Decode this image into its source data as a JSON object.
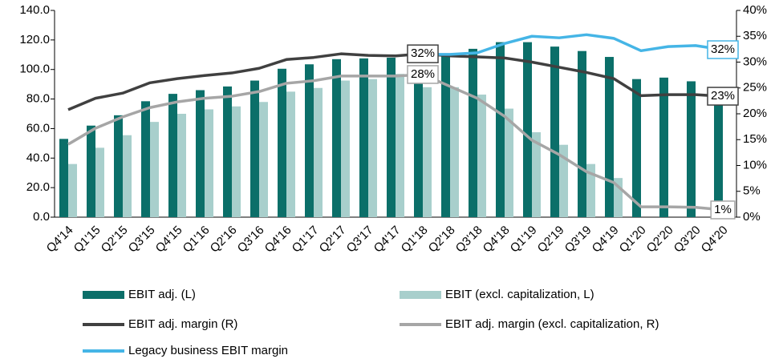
{
  "chart_data": {
    "type": "bar",
    "categories": [
      "Q4'14",
      "Q1'15",
      "Q2'15",
      "Q3'15",
      "Q4'15",
      "Q1'16",
      "Q2'16",
      "Q3'16",
      "Q4'16",
      "Q1'17",
      "Q2'17",
      "Q3'17",
      "Q4'17",
      "Q1'18",
      "Q2'18",
      "Q3'18",
      "Q4'18",
      "Q1'19",
      "Q2'19",
      "Q3'19",
      "Q4'19",
      "Q1'20",
      "Q2'20",
      "Q3'20",
      "Q4'20"
    ],
    "series": [
      {
        "name": "EBIT adj. (L)",
        "type": "bar",
        "color": "#0b6f69",
        "values": [
          53,
          62,
          69,
          78.5,
          83.5,
          86,
          88.5,
          92.5,
          100.5,
          103.5,
          107,
          107.5,
          108,
          93,
          110,
          114,
          118.5,
          118.5,
          115.5,
          112.5,
          108.5,
          93.5,
          94.5,
          92,
          79
        ]
      },
      {
        "name": "EBIT (excl. capitalization, L)",
        "type": "bar",
        "color": "#a8cfcc",
        "values": [
          36,
          47,
          55.5,
          64.5,
          70,
          73,
          75,
          78,
          85,
          87.5,
          92.5,
          93.5,
          97,
          88,
          88,
          83,
          73.5,
          57.5,
          49,
          36,
          26.5,
          null,
          null,
          null,
          null
        ]
      },
      {
        "name": "EBIT adj. margin (R)",
        "type": "line",
        "axis": "y2",
        "color": "#404040",
        "values": [
          20.8,
          23,
          24,
          26,
          26.8,
          27.4,
          27.9,
          28.8,
          30.5,
          30.9,
          31.6,
          31.3,
          31.2,
          31.6,
          31.2,
          31,
          30.8,
          30,
          29,
          28,
          26.8,
          23.5,
          23.7,
          23.7,
          23.4
        ],
        "value_labels": [
          null,
          null,
          null,
          null,
          null,
          null,
          null,
          null,
          null,
          null,
          null,
          null,
          null,
          "32%",
          null,
          null,
          null,
          null,
          null,
          null,
          null,
          null,
          null,
          null,
          "23%"
        ]
      },
      {
        "name": "EBIT adj. margin (excl. capitalization, R)",
        "type": "line",
        "axis": "y2",
        "color": "#a6a6a6",
        "values": [
          14.1,
          17.2,
          19.4,
          21.2,
          22.3,
          23,
          23.4,
          24.3,
          25.9,
          26.4,
          27.3,
          27.3,
          27.3,
          27.6,
          25.3,
          23,
          19.5,
          14.9,
          12.1,
          8.8,
          6.7,
          2,
          2,
          1.9,
          1.4
        ],
        "value_labels": [
          null,
          null,
          null,
          null,
          null,
          null,
          null,
          null,
          null,
          null,
          null,
          null,
          null,
          "28%",
          null,
          null,
          null,
          null,
          null,
          null,
          null,
          null,
          null,
          null,
          "1%"
        ]
      },
      {
        "name": "Legacy business EBIT margin",
        "type": "line",
        "axis": "y2",
        "color": "#45b5e6",
        "values": [
          null,
          null,
          null,
          null,
          null,
          null,
          null,
          null,
          null,
          null,
          null,
          null,
          null,
          31.5,
          31.5,
          31.8,
          33.6,
          35,
          34.7,
          35.3,
          34.6,
          32.2,
          33,
          33.2,
          32.4
        ],
        "value_labels": [
          null,
          null,
          null,
          null,
          null,
          null,
          null,
          null,
          null,
          null,
          null,
          null,
          null,
          null,
          null,
          null,
          null,
          null,
          null,
          null,
          null,
          null,
          null,
          null,
          "32%"
        ]
      }
    ],
    "ylim": [
      0,
      140
    ],
    "yticks": [
      {
        "value": 0,
        "label": "0.0"
      },
      {
        "value": 20,
        "label": "20.0"
      },
      {
        "value": 40,
        "label": "40.0"
      },
      {
        "value": 60,
        "label": "60.0"
      },
      {
        "value": 80,
        "label": "80.0"
      },
      {
        "value": 100,
        "label": "100.0"
      },
      {
        "value": 120,
        "label": "120.0"
      },
      {
        "value": 140,
        "label": "140.0"
      }
    ],
    "y2lim": [
      0,
      40
    ],
    "y2ticks": [
      {
        "value": 0,
        "label": "0%"
      },
      {
        "value": 5,
        "label": "5%"
      },
      {
        "value": 10,
        "label": "10%"
      },
      {
        "value": 15,
        "label": "15%"
      },
      {
        "value": 20,
        "label": "20%"
      },
      {
        "value": 25,
        "label": "25%"
      },
      {
        "value": 30,
        "label": "30%"
      },
      {
        "value": 35,
        "label": "35%"
      },
      {
        "value": 40,
        "label": "40%"
      }
    ],
    "grid": false,
    "legend": "bottom"
  }
}
